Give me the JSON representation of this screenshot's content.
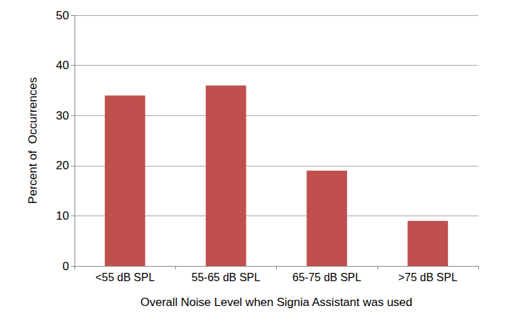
{
  "chart_data": {
    "type": "bar",
    "categories": [
      "<55 dB SPL",
      "55-65 dB SPL",
      "65-75 dB SPL",
      ">75 dB SPL"
    ],
    "values": [
      34,
      36,
      19,
      9
    ],
    "color": "#c0504d",
    "xlabel": "Overall Noise Level when Signia Assistant was used",
    "ylabel": "Percent of  Occurrences",
    "ylim": [
      0,
      50
    ],
    "yticks": [
      0,
      10,
      20,
      30,
      40,
      50
    ],
    "grid": true
  }
}
